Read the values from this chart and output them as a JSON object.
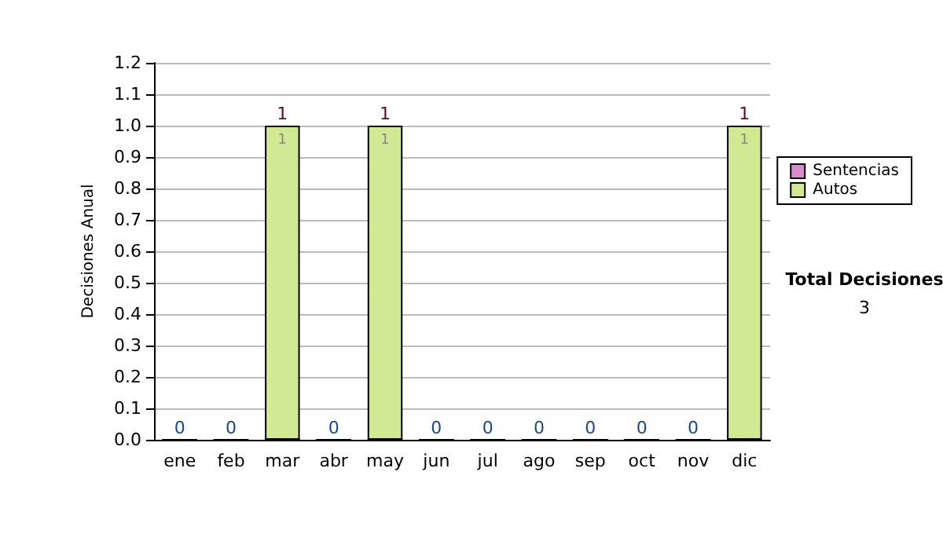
{
  "chart_data": {
    "type": "bar",
    "stacked": true,
    "ylabel": "Decisiones Anual",
    "categories": [
      "ene",
      "feb",
      "mar",
      "abr",
      "may",
      "jun",
      "jul",
      "ago",
      "sep",
      "oct",
      "nov",
      "dic"
    ],
    "series": [
      {
        "name": "Sentencias",
        "color": "#d98ccb",
        "values": [
          0,
          0,
          0,
          0,
          0,
          0,
          0,
          0,
          0,
          0,
          0,
          0
        ]
      },
      {
        "name": "Autos",
        "color": "#d2e993",
        "values": [
          0,
          0,
          1,
          0,
          1,
          0,
          0,
          0,
          0,
          0,
          0,
          1
        ],
        "value_labels": [
          null,
          null,
          "1",
          null,
          "1",
          null,
          null,
          null,
          null,
          null,
          null,
          "1"
        ]
      }
    ],
    "totals": [
      "0",
      "0",
      "1",
      "0",
      "1",
      "0",
      "0",
      "0",
      "0",
      "0",
      "0",
      "1"
    ],
    "ylim": [
      0,
      1.2
    ],
    "yticks": [
      {
        "value": 0,
        "label": "0.0"
      },
      0.1,
      0.2,
      0.3,
      0.4,
      0.5,
      0.6,
      0.7,
      0.8,
      0.9,
      {
        "value": 1,
        "label": "1.0"
      },
      1.1,
      1.2
    ],
    "grid": "y",
    "legend": "right",
    "annotations": [
      "Total Decisiones",
      "3"
    ]
  }
}
